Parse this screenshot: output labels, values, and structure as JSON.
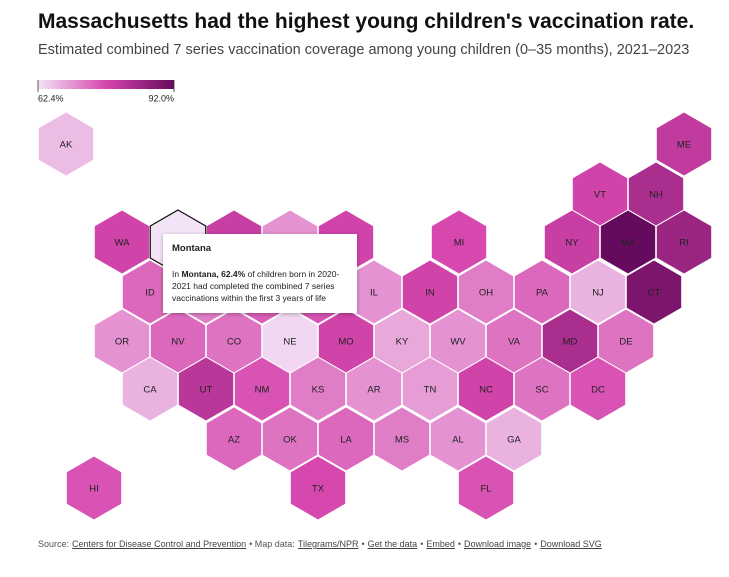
{
  "chart_data": {
    "type": "hexmap",
    "title": "Massachusetts had the highest young children's vaccination rate.",
    "subtitle": "Estimated combined 7 series vaccination coverage among young children (0–35 months), 2021–2023",
    "colors": [
      "#f3e3f6",
      "#d646ad",
      "#650a5c"
    ],
    "legend_ticks": [
      {
        "value": 62.4,
        "label": "62.4%"
      },
      {
        "value": 92.0,
        "label": "92.0%"
      }
    ],
    "categories": [
      "AK",
      "ME",
      "VT",
      "NH",
      "WA",
      "MT",
      null,
      null,
      null,
      "MI",
      "NY",
      "MA",
      "RI",
      "ID",
      null,
      null,
      null,
      "IL",
      "IN",
      "OH",
      "PA",
      "NJ",
      "CT",
      "OR",
      "NV",
      "CO",
      "NE",
      "MO",
      "KY",
      "WV",
      "VA",
      "MD",
      "DE",
      "CA",
      "UT",
      "NM",
      "KS",
      "AR",
      "TN",
      "NC",
      "SC",
      "DC",
      "AZ",
      "OK",
      "LA",
      "MS",
      "AL",
      "GA",
      "HI",
      "TX",
      "FL"
    ],
    "values": [
      66,
      80,
      78,
      83,
      78,
      62.4,
      79,
      70,
      78,
      77,
      79,
      92,
      85,
      74,
      72,
      75,
      76,
      70,
      78,
      72,
      74,
      67,
      89,
      70,
      74,
      73,
      63.5,
      78,
      68,
      70,
      73,
      83,
      73,
      67,
      81,
      76,
      72,
      70,
      69,
      78,
      73,
      76,
      74,
      73,
      74,
      72,
      70,
      67,
      76,
      77,
      76
    ],
    "highlight": 5,
    "tooltip": {
      "title": "Montana",
      "body": [
        "In ",
        "Montana, 62.4%",
        " of children born in 2020-2021 had completed the combined 7 series vaccinations within the first 3 years of life"
      ]
    }
  },
  "footer": [
    {
      "text": "Source:",
      "link": false
    },
    {
      "text": "Centers for Disease Control and Prevention",
      "link": true
    },
    {
      "text": "• Map data:",
      "link": false
    },
    {
      "text": "Tilegrams/NPR",
      "link": true
    },
    {
      "text": "•",
      "link": false
    },
    {
      "text": "Get the data",
      "link": true
    },
    {
      "text": "•",
      "link": false
    },
    {
      "text": "Embed",
      "link": true
    },
    {
      "text": "•",
      "link": false
    },
    {
      "text": "Download image",
      "link": true
    },
    {
      "text": "•",
      "link": false
    },
    {
      "text": "Download SVG",
      "link": true
    }
  ]
}
